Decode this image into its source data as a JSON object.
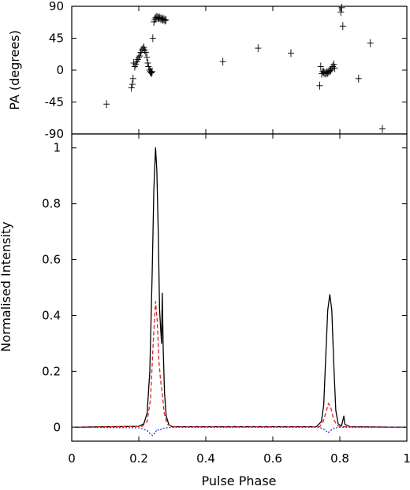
{
  "chart_data": [
    {
      "type": "scatter",
      "panel": "top",
      "xlabel": "",
      "ylabel": "PA (degrees)",
      "xlim": [
        0,
        1
      ],
      "ylim": [
        -90,
        90
      ],
      "yticks": [
        -90,
        -45,
        0,
        45,
        90
      ],
      "ytick_labels": [
        "-90",
        "-45",
        "0",
        "45",
        "90"
      ],
      "marker": "plus",
      "series": [
        {
          "points": [
            [
              0.104,
              -48
            ],
            [
              0.178,
              -25
            ],
            [
              0.181,
              -20
            ],
            [
              0.183,
              -12
            ],
            [
              0.185,
              10
            ],
            [
              0.188,
              5
            ],
            [
              0.191,
              8
            ],
            [
              0.194,
              12
            ],
            [
              0.197,
              15
            ],
            [
              0.2,
              18
            ],
            [
              0.203,
              20
            ],
            [
              0.206,
              25
            ],
            [
              0.209,
              28
            ],
            [
              0.212,
              30
            ],
            [
              0.215,
              32
            ],
            [
              0.218,
              28
            ],
            [
              0.221,
              25
            ],
            [
              0.224,
              18
            ],
            [
              0.227,
              10
            ],
            [
              0.229,
              5
            ],
            [
              0.232,
              0
            ],
            [
              0.234,
              -2
            ],
            [
              0.236,
              -3
            ],
            [
              0.238,
              -4
            ],
            [
              0.24,
              -2
            ],
            [
              0.242,
              45
            ],
            [
              0.245,
              68
            ],
            [
              0.248,
              72
            ],
            [
              0.251,
              74
            ],
            [
              0.254,
              75
            ],
            [
              0.257,
              74
            ],
            [
              0.26,
              73
            ],
            [
              0.263,
              74
            ],
            [
              0.266,
              72
            ],
            [
              0.269,
              73
            ],
            [
              0.272,
              71
            ],
            [
              0.275,
              72
            ],
            [
              0.278,
              70
            ],
            [
              0.281,
              71
            ],
            [
              0.451,
              12
            ],
            [
              0.556,
              31
            ],
            [
              0.654,
              24
            ],
            [
              0.74,
              -22
            ],
            [
              0.743,
              5
            ],
            [
              0.746,
              -5
            ],
            [
              0.749,
              -2
            ],
            [
              0.752,
              -3
            ],
            [
              0.755,
              -4
            ],
            [
              0.758,
              -5
            ],
            [
              0.761,
              -3
            ],
            [
              0.764,
              -4
            ],
            [
              0.767,
              -2
            ],
            [
              0.77,
              -1
            ],
            [
              0.773,
              0
            ],
            [
              0.776,
              2
            ],
            [
              0.779,
              5
            ],
            [
              0.782,
              8
            ],
            [
              0.785,
              3
            ],
            [
              0.803,
              82
            ],
            [
              0.806,
              88
            ],
            [
              0.809,
              62
            ],
            [
              0.856,
              -12
            ],
            [
              0.891,
              38
            ],
            [
              0.927,
              -83
            ]
          ]
        }
      ]
    },
    {
      "type": "line",
      "panel": "bottom",
      "xlabel": "Pulse Phase",
      "ylabel": "Normalised Intensity",
      "xlim": [
        0,
        1
      ],
      "ylim": [
        -0.05,
        1.05
      ],
      "xticks": [
        0,
        0.2,
        0.4,
        0.6,
        0.8,
        1
      ],
      "xtick_labels": [
        "0",
        "0.2",
        "0.4",
        "0.6",
        "0.8",
        "1"
      ],
      "yticks": [
        0,
        0.2,
        0.4,
        0.6,
        0.8,
        1
      ],
      "ytick_labels": [
        "0",
        "0.2",
        "0.4",
        "0.6",
        "0.8",
        "1"
      ],
      "series": [
        {
          "color": "#000000",
          "style": "solid",
          "points": [
            [
              0,
              0
            ],
            [
              0.2,
              0.003
            ],
            [
              0.215,
              0.012
            ],
            [
              0.225,
              0.05
            ],
            [
              0.233,
              0.2
            ],
            [
              0.24,
              0.55
            ],
            [
              0.245,
              0.85
            ],
            [
              0.25,
              1.0
            ],
            [
              0.254,
              0.92
            ],
            [
              0.258,
              0.7
            ],
            [
              0.262,
              0.42
            ],
            [
              0.265,
              0.36
            ],
            [
              0.268,
              0.3
            ],
            [
              0.27,
              0.48
            ],
            [
              0.273,
              0.28
            ],
            [
              0.277,
              0.12
            ],
            [
              0.282,
              0.04
            ],
            [
              0.29,
              0.008
            ],
            [
              0.3,
              0.002
            ],
            [
              0.73,
              0.002
            ],
            [
              0.745,
              0.02
            ],
            [
              0.752,
              0.08
            ],
            [
              0.758,
              0.25
            ],
            [
              0.764,
              0.42
            ],
            [
              0.77,
              0.475
            ],
            [
              0.776,
              0.42
            ],
            [
              0.782,
              0.22
            ],
            [
              0.788,
              0.06
            ],
            [
              0.795,
              0.012
            ],
            [
              0.805,
              0.004
            ],
            [
              0.81,
              0.03
            ],
            [
              0.812,
              0.04
            ],
            [
              0.815,
              0.01
            ],
            [
              0.83,
              0.002
            ],
            [
              1,
              0
            ]
          ]
        },
        {
          "color": "#dd2222",
          "style": "dashed",
          "points": [
            [
              0,
              0
            ],
            [
              0.21,
              0.003
            ],
            [
              0.225,
              0.02
            ],
            [
              0.235,
              0.1
            ],
            [
              0.243,
              0.3
            ],
            [
              0.25,
              0.45
            ],
            [
              0.255,
              0.38
            ],
            [
              0.26,
              0.24
            ],
            [
              0.265,
              0.17
            ],
            [
              0.27,
              0.12
            ],
            [
              0.276,
              0.05
            ],
            [
              0.285,
              0.01
            ],
            [
              0.3,
              0.002
            ],
            [
              0.74,
              0.002
            ],
            [
              0.75,
              0.02
            ],
            [
              0.758,
              0.05
            ],
            [
              0.766,
              0.085
            ],
            [
              0.772,
              0.075
            ],
            [
              0.78,
              0.035
            ],
            [
              0.79,
              0.008
            ],
            [
              0.8,
              0.002
            ],
            [
              1,
              0
            ]
          ]
        },
        {
          "color": "#2233cc",
          "style": "dotted",
          "points": [
            [
              0,
              0
            ],
            [
              0.2,
              -0.002
            ],
            [
              0.225,
              -0.012
            ],
            [
              0.235,
              -0.025
            ],
            [
              0.242,
              -0.03
            ],
            [
              0.248,
              -0.02
            ],
            [
              0.255,
              -0.008
            ],
            [
              0.262,
              -0.012
            ],
            [
              0.27,
              -0.004
            ],
            [
              0.3,
              0
            ],
            [
              0.74,
              0
            ],
            [
              0.755,
              -0.01
            ],
            [
              0.765,
              -0.02
            ],
            [
              0.772,
              -0.012
            ],
            [
              0.785,
              -0.003
            ],
            [
              0.8,
              0
            ],
            [
              1,
              0
            ]
          ]
        }
      ]
    }
  ]
}
